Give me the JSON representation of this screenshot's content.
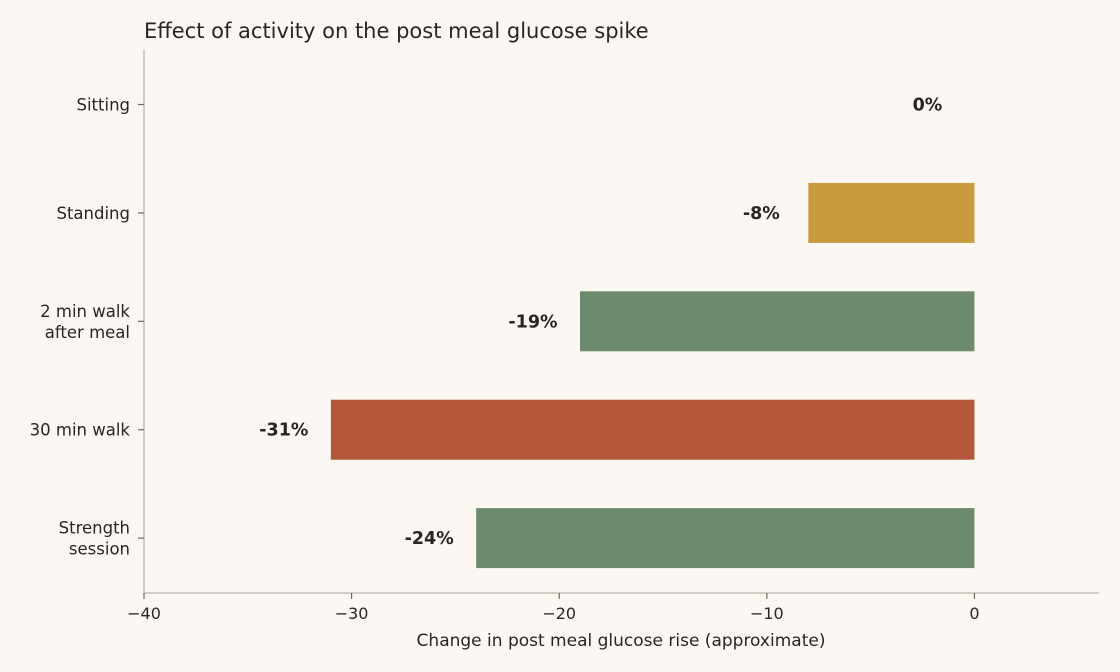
{
  "chart_data": {
    "type": "bar",
    "orientation": "horizontal",
    "title": "Effect of activity on the post meal glucose spike",
    "xlabel": "Change in post meal glucose rise (approximate)",
    "ylabel": "",
    "xlim": [
      -40,
      6
    ],
    "x_ticks": [
      -40,
      -30,
      -20,
      -10,
      0
    ],
    "x_tick_labels": [
      "−40",
      "−30",
      "−20",
      "−10",
      "0"
    ],
    "grid": false,
    "categories": [
      [
        "Sitting"
      ],
      [
        "Standing"
      ],
      [
        "2 min walk",
        "after meal"
      ],
      [
        "30 min walk"
      ],
      [
        "Strength",
        "session"
      ]
    ],
    "values": [
      0,
      -8,
      -19,
      -31,
      -24
    ],
    "data_labels": [
      "0%",
      "-8%",
      "-19%",
      "-31%",
      "-24%"
    ],
    "colors": [
      "#c99a3e",
      "#c99a3e",
      "#6e8a6d",
      "#b5573a",
      "#6e8a6d"
    ]
  }
}
